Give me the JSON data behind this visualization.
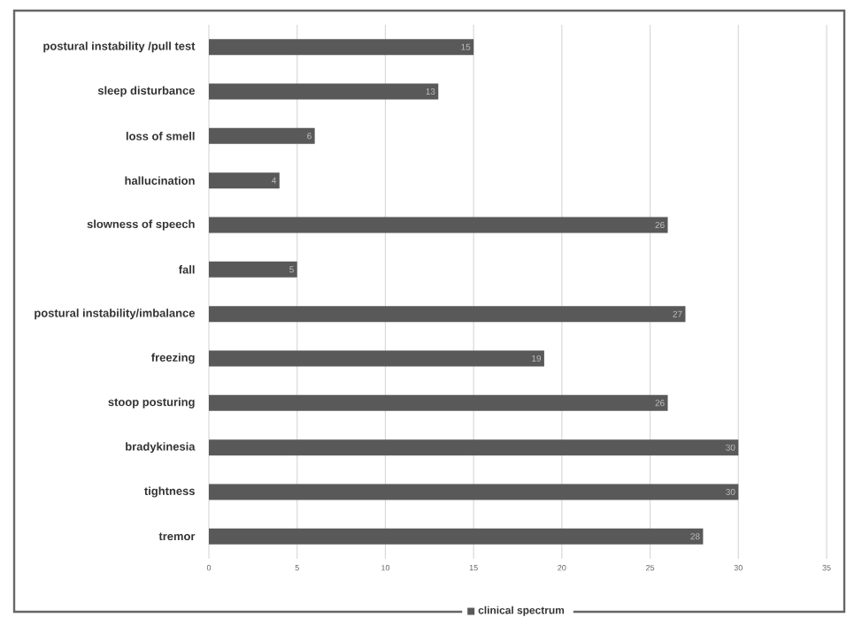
{
  "chart_data": {
    "type": "bar",
    "orientation": "horizontal",
    "categories": [
      "postural instability /pull test",
      "sleep disturbance",
      "loss of smell",
      "hallucination",
      "slowness of speech",
      "fall",
      "postural instability/imbalance",
      "freezing",
      "stoop posturing",
      "bradykinesia",
      "tightness",
      "tremor"
    ],
    "series": [
      {
        "name": "clinical spectrum",
        "color": "#595959",
        "values": [
          15,
          13,
          6,
          4,
          26,
          5,
          27,
          19,
          26,
          30,
          30,
          28
        ]
      }
    ],
    "xlim": [
      0,
      35
    ],
    "xticks": [
      0,
      5,
      10,
      15,
      20,
      25,
      30,
      35
    ],
    "grid": "x",
    "legend": "bottom",
    "data_labels": true
  }
}
